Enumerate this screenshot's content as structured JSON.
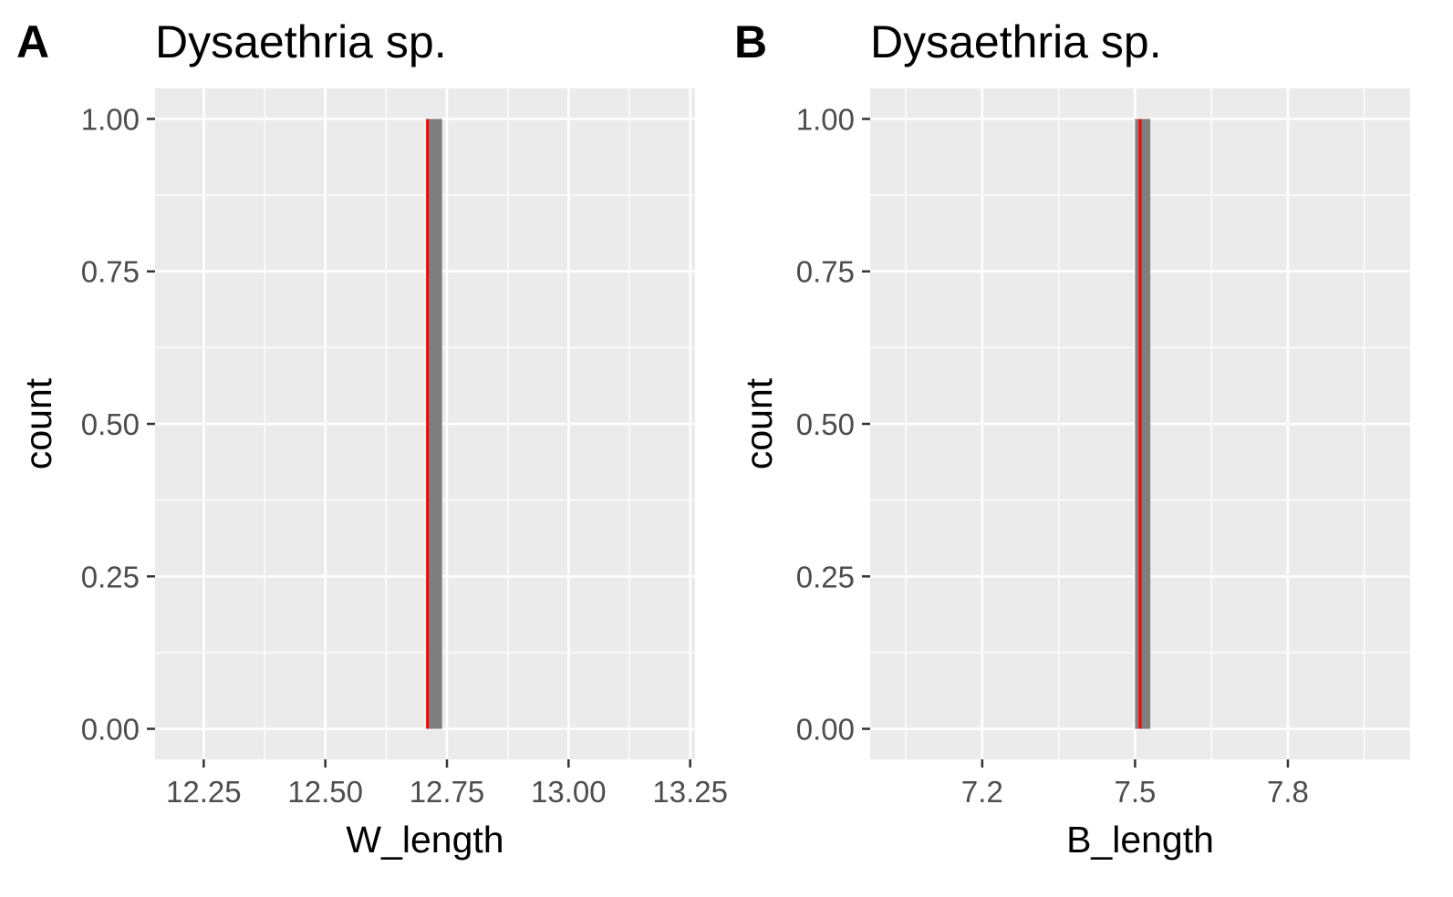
{
  "colors": {
    "panel_background": "#ebebeb",
    "grid": "#ffffff",
    "bar_fill": "#7f7f7f",
    "mean_line": "#ff0000",
    "tick_mark": "#333333"
  },
  "chart_data": [
    {
      "type": "bar",
      "panel_label": "A",
      "title": "Dysaethria sp.",
      "xlabel": "W_length",
      "ylabel": "count",
      "xlim": [
        12.15,
        13.26
      ],
      "ylim": [
        -0.05,
        1.05
      ],
      "x_ticks": [
        12.25,
        12.5,
        12.75,
        13.0,
        13.25
      ],
      "x_tick_labels": [
        "12.25",
        "12.50",
        "12.75",
        "13.00",
        "13.25"
      ],
      "y_ticks": [
        0,
        0.25,
        0.5,
        0.75,
        1.0
      ],
      "y_tick_labels": [
        "0.00",
        "0.25",
        "0.50",
        "0.75",
        "1.00"
      ],
      "bars": [
        {
          "x_start": 12.71,
          "x_end": 12.74,
          "count": 1
        }
      ],
      "vline": {
        "x": 12.71
      },
      "grid": true
    },
    {
      "type": "bar",
      "panel_label": "B",
      "title": "Dysaethria sp.",
      "xlabel": "B_length",
      "ylabel": "count",
      "xlim": [
        6.98,
        8.04
      ],
      "ylim": [
        -0.05,
        1.05
      ],
      "x_ticks": [
        7.2,
        7.5,
        7.8
      ],
      "x_tick_labels": [
        "7.2",
        "7.5",
        "7.8"
      ],
      "y_ticks": [
        0,
        0.25,
        0.5,
        0.75,
        1.0
      ],
      "y_tick_labels": [
        "0.00",
        "0.25",
        "0.50",
        "0.75",
        "1.00"
      ],
      "bars": [
        {
          "x_start": 7.5,
          "x_end": 7.53,
          "count": 1
        }
      ],
      "vline": {
        "x": 7.51
      },
      "grid": true
    }
  ]
}
